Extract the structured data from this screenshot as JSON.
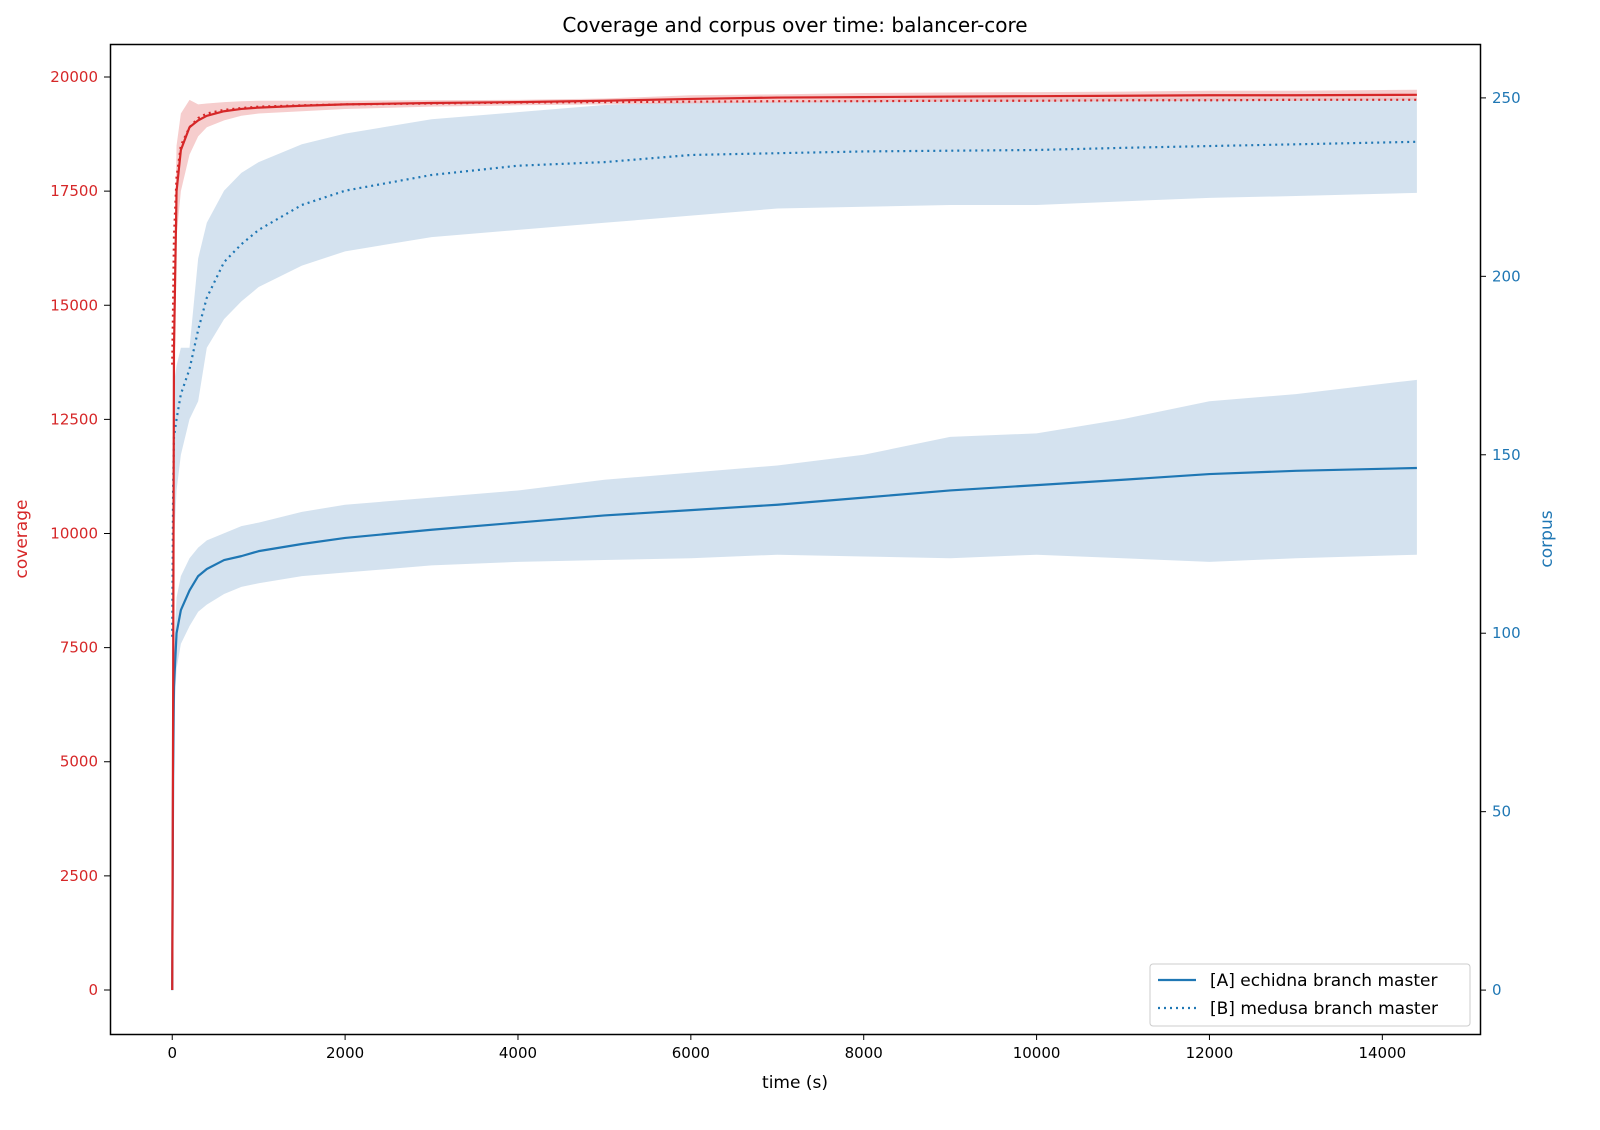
{
  "chart_data": {
    "type": "line",
    "title": "Coverage and corpus over time: balancer-core",
    "xlabel": "time (s)",
    "ylabel_left": "coverage",
    "ylabel_right": "corpus",
    "xlim": [
      -720,
      15130
    ],
    "ylim_left": [
      -964,
      20723
    ],
    "ylim_right": [
      -12.3,
      265.1
    ],
    "xticks": [
      0,
      2000,
      4000,
      6000,
      8000,
      10000,
      12000,
      14000
    ],
    "yticks_left": [
      0,
      2500,
      5000,
      7500,
      10000,
      12500,
      15000,
      17500,
      20000
    ],
    "yticks_right": [
      0,
      50,
      100,
      150,
      200,
      250
    ],
    "grid": false,
    "legend_position": "bottom-right",
    "colors": {
      "coverage": "#d62728",
      "corpus": "#1f77b4",
      "coverage_band": "#f2b8b8",
      "corpus_band": "#c6d8ea"
    },
    "x": [
      0,
      10,
      20,
      50,
      100,
      200,
      300,
      400,
      600,
      800,
      1000,
      1500,
      2000,
      3000,
      4000,
      5000,
      6000,
      7000,
      8000,
      9000,
      10000,
      11000,
      12000,
      13000,
      14400
    ],
    "series": [
      {
        "name": "[A] echidna branch master",
        "metric": "coverage",
        "axis": "left",
        "style": "solid",
        "values": [
          0,
          6000,
          14000,
          17500,
          18400,
          18900,
          19050,
          19150,
          19250,
          19300,
          19330,
          19370,
          19400,
          19430,
          19450,
          19480,
          19520,
          19550,
          19560,
          19570,
          19580,
          19590,
          19600,
          19600,
          19610
        ],
        "lower": [
          0,
          5000,
          12500,
          16500,
          17500,
          18300,
          18700,
          18900,
          19050,
          19150,
          19200,
          19250,
          19300,
          19350,
          19380,
          19400,
          19420,
          19440,
          19450,
          19460,
          19460,
          19470,
          19480,
          19480,
          19490
        ],
        "upper": [
          0,
          7000,
          15500,
          18500,
          19200,
          19500,
          19400,
          19420,
          19450,
          19470,
          19480,
          19480,
          19480,
          19490,
          19500,
          19530,
          19600,
          19620,
          19650,
          19660,
          19670,
          19680,
          19700,
          19700,
          19720
        ]
      },
      {
        "name": "[B] medusa branch master",
        "metric": "coverage",
        "axis": "left",
        "style": "dotted",
        "values": [
          13700,
          15000,
          16500,
          17800,
          18500,
          18900,
          19100,
          19200,
          19280,
          19320,
          19350,
          19380,
          19400,
          19420,
          19440,
          19450,
          19460,
          19470,
          19470,
          19480,
          19480,
          19490,
          19490,
          19500,
          19500
        ]
      },
      {
        "name": "[A] echidna branch master",
        "metric": "corpus",
        "axis": "right",
        "style": "solid",
        "values": [
          0,
          60,
          85,
          100,
          106.5,
          112,
          116,
          118,
          120.5,
          121.6,
          123,
          125,
          126.7,
          129,
          131,
          133,
          134.5,
          136,
          138,
          140,
          141.5,
          143,
          144.6,
          145.5,
          146.3
        ],
        "lower": [
          0,
          50,
          75,
          90,
          97,
          102,
          106,
          108,
          111,
          113,
          114,
          116,
          117,
          119,
          120,
          120.5,
          121,
          122,
          121.5,
          121,
          122,
          121,
          120,
          121,
          122
        ],
        "upper": [
          0,
          70,
          95,
          110,
          116,
          121,
          124,
          126,
          128,
          130,
          131,
          134,
          136,
          138,
          140,
          143,
          145,
          147,
          150,
          155,
          156,
          160,
          165,
          167,
          171
        ]
      },
      {
        "name": "[B] medusa branch master",
        "metric": "corpus",
        "axis": "right",
        "style": "dotted",
        "values": [
          99,
          140,
          155,
          160,
          167,
          174,
          185,
          194,
          204,
          209,
          213,
          220,
          224,
          228.4,
          231,
          232,
          234,
          234.5,
          235,
          235.2,
          235.4,
          236,
          236.5,
          237,
          237.7
        ],
        "lower": [
          90,
          110,
          125,
          140,
          150,
          160,
          165,
          180,
          188,
          193,
          197,
          203,
          207,
          211,
          213,
          215,
          217,
          219,
          219.5,
          220,
          220,
          221,
          222,
          222.5,
          223.4
        ],
        "upper": [
          110,
          160,
          170,
          175,
          180,
          180,
          205,
          215,
          224,
          229,
          232,
          237,
          240,
          244,
          246,
          248,
          249,
          249,
          249.5,
          250,
          250,
          250,
          250,
          250,
          250
        ]
      }
    ],
    "legend": [
      "[A] echidna branch master",
      "[B] medusa branch master"
    ]
  }
}
